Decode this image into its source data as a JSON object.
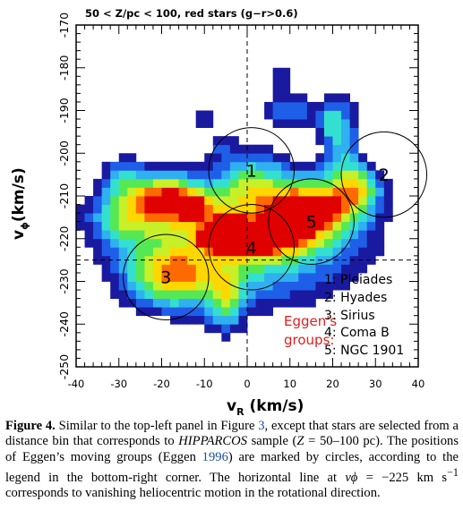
{
  "chart_data": {
    "type": "heatmap",
    "title": "50 < Z/pc < 100, red stars (g−r>0.6)",
    "xlabel_main": "v",
    "xlabel_sub": "R",
    "xlabel_units": " (km/s)",
    "ylabel_main": "v",
    "ylabel_sub": "ϕ",
    "ylabel_units": "(km/s)",
    "xlim": [
      -40,
      40
    ],
    "ylim": [
      -250,
      -170
    ],
    "x_ticks": [
      "-40",
      "-30",
      "-20",
      "-10",
      "0",
      "10",
      "20",
      "30",
      "40"
    ],
    "y_ticks": [
      "-250",
      "-240",
      "-230",
      "-220",
      "-210",
      "-200",
      "-190",
      "-180",
      "-170"
    ],
    "reference_line_y": -225,
    "reference_line_x": 0,
    "colormap": [
      "#1a1aa0",
      "#1f5fe8",
      "#2fb0f0",
      "#33e0d0",
      "#55e855",
      "#c8f028",
      "#ffd700",
      "#ff6a00",
      "#e00000"
    ],
    "density_blobs": [
      {
        "x": -1.5,
        "y": -221,
        "sx": 20,
        "sy": 10,
        "a": 0.45
      },
      {
        "x": -8,
        "y": -220,
        "sx": 2.2,
        "sy": 1.8,
        "a": 0.65
      },
      {
        "x": -3,
        "y": -222,
        "sx": 2.0,
        "sy": 1.5,
        "a": 0.55
      },
      {
        "x": -4,
        "y": -216,
        "sx": 1.8,
        "sy": 1.3,
        "a": 0.55
      },
      {
        "x": 4,
        "y": -220,
        "sx": 4,
        "sy": 3,
        "a": 0.35
      },
      {
        "x": -18,
        "y": -229,
        "sx": 7,
        "sy": 5,
        "a": 0.42
      },
      {
        "x": -19,
        "y": -210,
        "sx": 5,
        "sy": 4,
        "a": 0.45
      },
      {
        "x": -12,
        "y": -213,
        "sx": 4,
        "sy": 3,
        "a": 0.35
      },
      {
        "x": 16,
        "y": -213,
        "sx": 7,
        "sy": 5,
        "a": 0.5
      },
      {
        "x": 17.5,
        "y": -212,
        "sx": 1.5,
        "sy": 1.2,
        "a": 0.4
      },
      {
        "x": 26,
        "y": -208,
        "sx": 4,
        "sy": 4,
        "a": 0.38
      },
      {
        "x": 1,
        "y": -207,
        "sx": 6,
        "sy": 6,
        "a": 0.3
      },
      {
        "x": 10,
        "y": -216,
        "sx": 4,
        "sy": 4,
        "a": 0.35
      },
      {
        "x": 22,
        "y": -196,
        "sx": 3,
        "sy": 7,
        "a": 0.3
      },
      {
        "x": 10,
        "y": -190,
        "sx": 6,
        "sy": 3,
        "a": 0.22
      },
      {
        "x": 8,
        "y": -182,
        "sx": 2.5,
        "sy": 3,
        "a": 0.18
      },
      {
        "x": -5,
        "y": -235,
        "sx": 3,
        "sy": 5,
        "a": 0.3
      },
      {
        "x": -28,
        "y": -214,
        "sx": 6,
        "sy": 5,
        "a": 0.35
      },
      {
        "x": -29,
        "y": -205,
        "sx": 3,
        "sy": 3,
        "a": 0.22
      },
      {
        "x": -10,
        "y": -192,
        "sx": 2.2,
        "sy": 2,
        "a": 0.15
      },
      {
        "x": -6,
        "y": -198,
        "sx": 2,
        "sy": 2,
        "a": 0.13
      },
      {
        "x": 19,
        "y": -193,
        "sx": 1.8,
        "sy": 2.5,
        "a": 0.17
      }
    ],
    "moving_groups": [
      {
        "label": "1",
        "x": 1,
        "y": -204,
        "r": 10
      },
      {
        "label": "2",
        "x": 32,
        "y": -205,
        "r": 10
      },
      {
        "label": "3",
        "x": -19,
        "y": -229,
        "r": 10
      },
      {
        "label": "4",
        "x": 1,
        "y": -222,
        "r": 10
      },
      {
        "label": "5",
        "x": 15,
        "y": -216,
        "r": 10
      }
    ],
    "legend": [
      "1: Pleiades",
      "2: Hyades",
      "3: Sirius",
      "4: Coma B",
      "5: NGC 1901"
    ],
    "legend_title": [
      "Eggen's",
      "groups:"
    ],
    "legend_title_color": "#e0201e"
  },
  "caption": {
    "label": "Figure 4.",
    "t1": " Similar to the top-left panel in Figure ",
    "ref1": "3",
    "t2": ", except that stars are selected from a distance bin that corresponds to ",
    "hip": "HIPPARCOS",
    "t3": " sample (",
    "z": "Z",
    "t4": " = 50–100 pc). The positions of Eggen’s moving groups (Eggen ",
    "ref2": "1996",
    "t5": ") are marked by circles, according to the legend in the bottom-right corner. The horizontal line at ",
    "vphi": "vϕ",
    "t6": " = −225 km s",
    "sup": "−1",
    "t7": " corresponds to vanishing heliocentric motion in the rotational direction."
  }
}
